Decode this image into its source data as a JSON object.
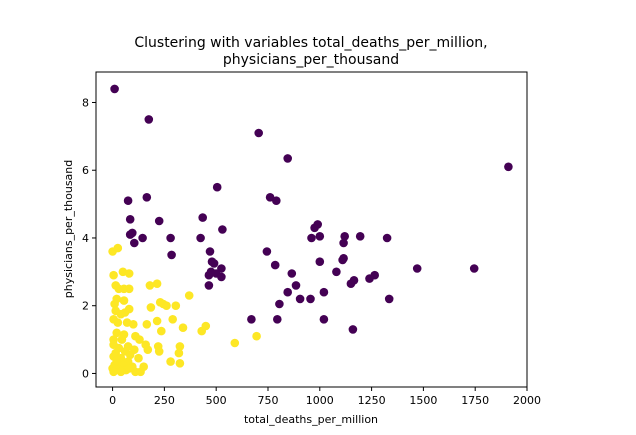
{
  "chart_data": {
    "type": "scatter",
    "title_lines": [
      "Clustering with variables total_deaths_per_million,",
      "physicians_per_thousand"
    ],
    "xlabel": "total_deaths_per_million",
    "ylabel": "physicians_per_thousand",
    "xlim": [
      -80,
      2000
    ],
    "ylim": [
      -0.4,
      8.9
    ],
    "x_ticks": [
      0,
      250,
      500,
      750,
      1000,
      1250,
      1500,
      1750,
      2000
    ],
    "y_ticks": [
      0,
      2,
      4,
      6,
      8
    ],
    "grid": false,
    "legend": "none",
    "colors": {
      "cluster_0": "#440154",
      "cluster_1": "#fde725"
    },
    "clusters": [
      {
        "color": "#440154",
        "points": [
          [
            10,
            8.4
          ],
          [
            175,
            7.5
          ],
          [
            705,
            7.1
          ],
          [
            845,
            6.35
          ],
          [
            1910,
            6.1
          ],
          [
            505,
            5.5
          ],
          [
            165,
            5.2
          ],
          [
            760,
            5.2
          ],
          [
            790,
            5.1
          ],
          [
            75,
            5.1
          ],
          [
            85,
            4.55
          ],
          [
            435,
            4.6
          ],
          [
            225,
            4.5
          ],
          [
            990,
            4.4
          ],
          [
            975,
            4.3
          ],
          [
            530,
            4.25
          ],
          [
            95,
            4.15
          ],
          [
            85,
            4.1
          ],
          [
            1195,
            4.05
          ],
          [
            1120,
            4.05
          ],
          [
            280,
            4.0
          ],
          [
            425,
            4.0
          ],
          [
            960,
            4.0
          ],
          [
            1000,
            4.05
          ],
          [
            1325,
            4.0
          ],
          [
            145,
            4.0
          ],
          [
            105,
            3.85
          ],
          [
            1115,
            3.85
          ],
          [
            470,
            3.6
          ],
          [
            745,
            3.6
          ],
          [
            285,
            3.5
          ],
          [
            1115,
            3.4
          ],
          [
            1110,
            3.35
          ],
          [
            1000,
            3.3
          ],
          [
            480,
            3.3
          ],
          [
            490,
            3.25
          ],
          [
            785,
            3.2
          ],
          [
            525,
            3.1
          ],
          [
            475,
            3.0
          ],
          [
            465,
            2.9
          ],
          [
            500,
            2.95
          ],
          [
            865,
            2.95
          ],
          [
            1470,
            3.1
          ],
          [
            1745,
            3.1
          ],
          [
            1265,
            2.9
          ],
          [
            1080,
            3.0
          ],
          [
            1240,
            2.8
          ],
          [
            1165,
            2.75
          ],
          [
            1150,
            2.65
          ],
          [
            525,
            2.85
          ],
          [
            465,
            2.6
          ],
          [
            885,
            2.6
          ],
          [
            1020,
            2.4
          ],
          [
            845,
            2.4
          ],
          [
            905,
            2.2
          ],
          [
            955,
            2.2
          ],
          [
            1335,
            2.2
          ],
          [
            805,
            2.05
          ],
          [
            1020,
            1.6
          ],
          [
            795,
            1.6
          ],
          [
            670,
            1.6
          ],
          [
            1160,
            1.3
          ]
        ]
      },
      {
        "color": "#fde725",
        "points": [
          [
            0,
            3.6
          ],
          [
            25,
            3.7
          ],
          [
            5,
            2.9
          ],
          [
            50,
            3.0
          ],
          [
            80,
            2.95
          ],
          [
            15,
            2.6
          ],
          [
            30,
            2.5
          ],
          [
            55,
            2.5
          ],
          [
            80,
            2.5
          ],
          [
            180,
            2.6
          ],
          [
            215,
            2.65
          ],
          [
            370,
            2.3
          ],
          [
            20,
            2.2
          ],
          [
            55,
            2.15
          ],
          [
            10,
            2.05
          ],
          [
            230,
            2.1
          ],
          [
            245,
            2.05
          ],
          [
            260,
            2.0
          ],
          [
            305,
            2.0
          ],
          [
            185,
            1.95
          ],
          [
            80,
            1.9
          ],
          [
            15,
            1.85
          ],
          [
            60,
            1.8
          ],
          [
            40,
            1.75
          ],
          [
            290,
            1.6
          ],
          [
            215,
            1.55
          ],
          [
            5,
            1.6
          ],
          [
            25,
            1.5
          ],
          [
            70,
            1.5
          ],
          [
            100,
            1.45
          ],
          [
            165,
            1.45
          ],
          [
            450,
            1.4
          ],
          [
            340,
            1.35
          ],
          [
            430,
            1.25
          ],
          [
            235,
            1.25
          ],
          [
            20,
            1.2
          ],
          [
            55,
            1.15
          ],
          [
            110,
            1.1
          ],
          [
            695,
            1.1
          ],
          [
            5,
            1.0
          ],
          [
            45,
            1.0
          ],
          [
            130,
            1.0
          ],
          [
            590,
            0.9
          ],
          [
            5,
            0.85
          ],
          [
            75,
            0.8
          ],
          [
            160,
            0.85
          ],
          [
            220,
            0.8
          ],
          [
            325,
            0.8
          ],
          [
            30,
            0.75
          ],
          [
            105,
            0.7
          ],
          [
            170,
            0.7
          ],
          [
            225,
            0.65
          ],
          [
            320,
            0.6
          ],
          [
            15,
            0.6
          ],
          [
            60,
            0.65
          ],
          [
            85,
            0.55
          ],
          [
            5,
            0.5
          ],
          [
            40,
            0.45
          ],
          [
            125,
            0.45
          ],
          [
            20,
            0.35
          ],
          [
            75,
            0.35
          ],
          [
            280,
            0.35
          ],
          [
            325,
            0.3
          ],
          [
            10,
            0.25
          ],
          [
            50,
            0.25
          ],
          [
            95,
            0.2
          ],
          [
            150,
            0.2
          ],
          [
            0,
            0.15
          ],
          [
            30,
            0.12
          ],
          [
            65,
            0.1
          ],
          [
            110,
            0.05
          ],
          [
            5,
            0.05
          ],
          [
            40,
            0.05
          ],
          [
            80,
            0.15
          ],
          [
            135,
            0.05
          ],
          [
            20,
            0.4
          ]
        ]
      }
    ]
  }
}
